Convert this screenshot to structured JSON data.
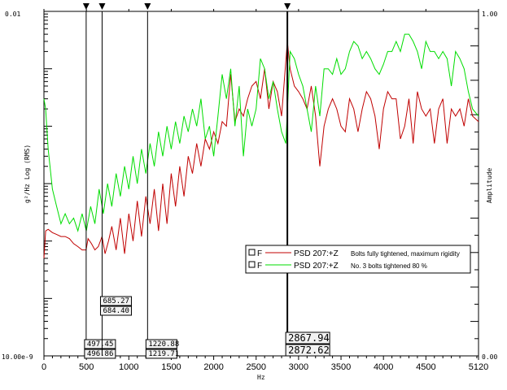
{
  "chart_data": {
    "type": "line",
    "xlabel": "Hz",
    "ylabel": "g²/Hz  Log (RMS)",
    "y2label": "Amplitude",
    "xlim": [
      0,
      5120
    ],
    "ylim": [
      1e-08,
      0.01
    ],
    "y_scale": "log",
    "y_top_label": "0.01",
    "y_bottom_label": "10.00e-9",
    "y2_top_label": "1.00",
    "y2_bottom_label": "0.00",
    "x_ticks": [
      "0",
      "500",
      "1000",
      "1500",
      "2000",
      "2500",
      "3000",
      "3500",
      "4000",
      "4500",
      "5120"
    ],
    "x_tick_values": [
      0,
      500,
      1000,
      1500,
      2000,
      2500,
      3000,
      3500,
      4000,
      4500,
      5120
    ],
    "grid": false,
    "legend_position": "right",
    "series": [
      {
        "name": "PSD 207:+Z Bolts fully tightened, maximum rigidity",
        "color": "#c00000",
        "x": [
          0,
          20,
          50,
          100,
          150,
          200,
          250,
          300,
          350,
          400,
          450,
          497,
          520,
          560,
          600,
          640,
          685,
          720,
          760,
          800,
          850,
          900,
          950,
          1000,
          1050,
          1100,
          1150,
          1200,
          1250,
          1300,
          1350,
          1400,
          1450,
          1500,
          1550,
          1600,
          1650,
          1700,
          1750,
          1800,
          1850,
          1900,
          1950,
          2000,
          2050,
          2100,
          2150,
          2200,
          2250,
          2300,
          2350,
          2400,
          2450,
          2500,
          2550,
          2600,
          2650,
          2700,
          2750,
          2800,
          2868,
          2900,
          2950,
          3000,
          3050,
          3100,
          3150,
          3200,
          3250,
          3300,
          3350,
          3400,
          3450,
          3500,
          3550,
          3600,
          3650,
          3700,
          3750,
          3800,
          3850,
          3900,
          3950,
          4000,
          4050,
          4100,
          4150,
          4200,
          4250,
          4300,
          4350,
          4400,
          4450,
          4500,
          4550,
          4600,
          4650,
          4700,
          4750,
          4800,
          4850,
          4900,
          4950,
          5000,
          5050,
          5120
        ],
        "y": [
          5e-07,
          1.5e-06,
          1.6e-06,
          1.4e-06,
          1.3e-06,
          1.2e-06,
          1.2e-06,
          1.1e-06,
          9e-07,
          8e-07,
          7e-07,
          7e-07,
          1.1e-06,
          9e-07,
          7e-07,
          8e-07,
          1.2e-06,
          6e-07,
          1e-06,
          1.8e-06,
          7e-07,
          2.5e-06,
          6e-07,
          3e-06,
          1e-06,
          5e-06,
          1.2e-06,
          6e-06,
          2e-06,
          8e-06,
          1.5e-06,
          1e-05,
          2e-06,
          1.5e-05,
          4e-06,
          2e-05,
          6e-06,
          3e-05,
          1.5e-05,
          5e-05,
          2e-05,
          6e-05,
          4e-05,
          8e-05,
          5e-05,
          0.00012,
          0.0001,
          0.0008,
          0.00012,
          0.0002,
          0.00015,
          0.0003,
          0.0005,
          0.0006,
          0.0003,
          0.001,
          0.0002,
          0.0006,
          0.0004,
          0.00015,
          0.003,
          0.001,
          0.0005,
          0.0004,
          0.0003,
          0.0002,
          0.0005,
          0.00015,
          2e-05,
          0.0001,
          0.0002,
          0.0003,
          0.0002,
          0.0001,
          8e-05,
          0.0003,
          0.0002,
          8e-05,
          0.0002,
          0.0004,
          0.0003,
          0.00015,
          4e-05,
          0.0002,
          0.0004,
          0.0003,
          0.0003,
          6e-05,
          0.0001,
          0.0003,
          5e-05,
          0.0004,
          0.0002,
          0.00015,
          0.0002,
          5e-05,
          0.0002,
          0.0003,
          5e-05,
          0.0002,
          0.00015,
          0.0002,
          0.0001,
          0.0003,
          0.00015,
          0.00012
        ]
      },
      {
        "name": "PSD 207:+Z No. 3 bolts tightened 80 %",
        "color": "#00dd00",
        "x": [
          0,
          20,
          50,
          100,
          150,
          200,
          250,
          300,
          350,
          400,
          450,
          500,
          550,
          600,
          650,
          700,
          750,
          800,
          850,
          900,
          950,
          1000,
          1050,
          1100,
          1150,
          1200,
          1250,
          1300,
          1350,
          1400,
          1450,
          1500,
          1550,
          1600,
          1650,
          1700,
          1750,
          1800,
          1850,
          1900,
          1950,
          2000,
          2050,
          2100,
          2150,
          2200,
          2250,
          2300,
          2350,
          2400,
          2450,
          2500,
          2550,
          2600,
          2650,
          2700,
          2750,
          2800,
          2850,
          2900,
          2950,
          3000,
          3050,
          3100,
          3150,
          3200,
          3250,
          3300,
          3350,
          3400,
          3450,
          3500,
          3550,
          3600,
          3650,
          3700,
          3750,
          3800,
          3850,
          3900,
          3950,
          4000,
          4050,
          4100,
          4150,
          4200,
          4250,
          4300,
          4350,
          4400,
          4450,
          4500,
          4550,
          4600,
          4650,
          4700,
          4750,
          4800,
          4850,
          4900,
          4950,
          5000,
          5050,
          5120
        ],
        "y": [
          0.0003,
          0.0002,
          4e-05,
          8e-06,
          4e-06,
          2e-06,
          3e-06,
          2e-06,
          2.5e-06,
          1.5e-06,
          3e-06,
          1.5e-06,
          4e-06,
          2e-06,
          8e-06,
          3e-06,
          1e-05,
          4e-06,
          1.5e-05,
          6e-06,
          2e-05,
          8e-06,
          3e-05,
          1e-05,
          4e-05,
          1.5e-05,
          5e-05,
          2e-05,
          8e-05,
          3e-05,
          0.0001,
          4e-05,
          0.00012,
          5e-05,
          0.00015,
          8e-05,
          0.0002,
          0.0001,
          0.0003,
          6e-05,
          0.0001,
          3e-05,
          0.00015,
          0.0008,
          0.0003,
          0.001,
          0.0001,
          0.0005,
          3e-05,
          0.0002,
          0.0001,
          0.0002,
          0.0015,
          0.001,
          0.0003,
          0.0006,
          0.0002,
          8e-05,
          5e-05,
          0.002,
          0.0015,
          0.0008,
          0.0005,
          0.0002,
          8e-05,
          0.0005,
          0.00015,
          0.001,
          0.001,
          0.0008,
          0.0015,
          0.0008,
          0.001,
          0.002,
          0.003,
          0.0025,
          0.0015,
          0.002,
          0.0015,
          0.001,
          0.0008,
          0.0012,
          0.002,
          0.002,
          0.003,
          0.002,
          0.004,
          0.004,
          0.003,
          0.002,
          0.001,
          0.003,
          0.002,
          0.002,
          0.0015,
          0.002,
          0.0015,
          0.0005,
          0.002,
          0.0015,
          0.001,
          0.0004,
          0.0002,
          0.00015
        ]
      }
    ],
    "cursors": [
      {
        "x": 497.45,
        "labels": [
          "497.45",
          "496.86"
        ]
      },
      {
        "x": 685.27,
        "labels": [
          "685.27",
          "684.40"
        ]
      },
      {
        "x": 1220.88,
        "labels": [
          "1220.88",
          "1219.71"
        ]
      },
      {
        "x": 2867.94,
        "labels": [
          "2867.94",
          "2872.62"
        ],
        "primary": true
      }
    ],
    "legend": [
      {
        "checkbox": "F",
        "line_color": "#c00000",
        "label": "PSD 207:+Z",
        "desc": "Bolts fully tightened, maximum rigidity"
      },
      {
        "checkbox": "F",
        "line_color": "#00dd00",
        "label": "PSD 207:+Z",
        "desc": "No. 3 bolts tightened 80 %"
      }
    ]
  }
}
